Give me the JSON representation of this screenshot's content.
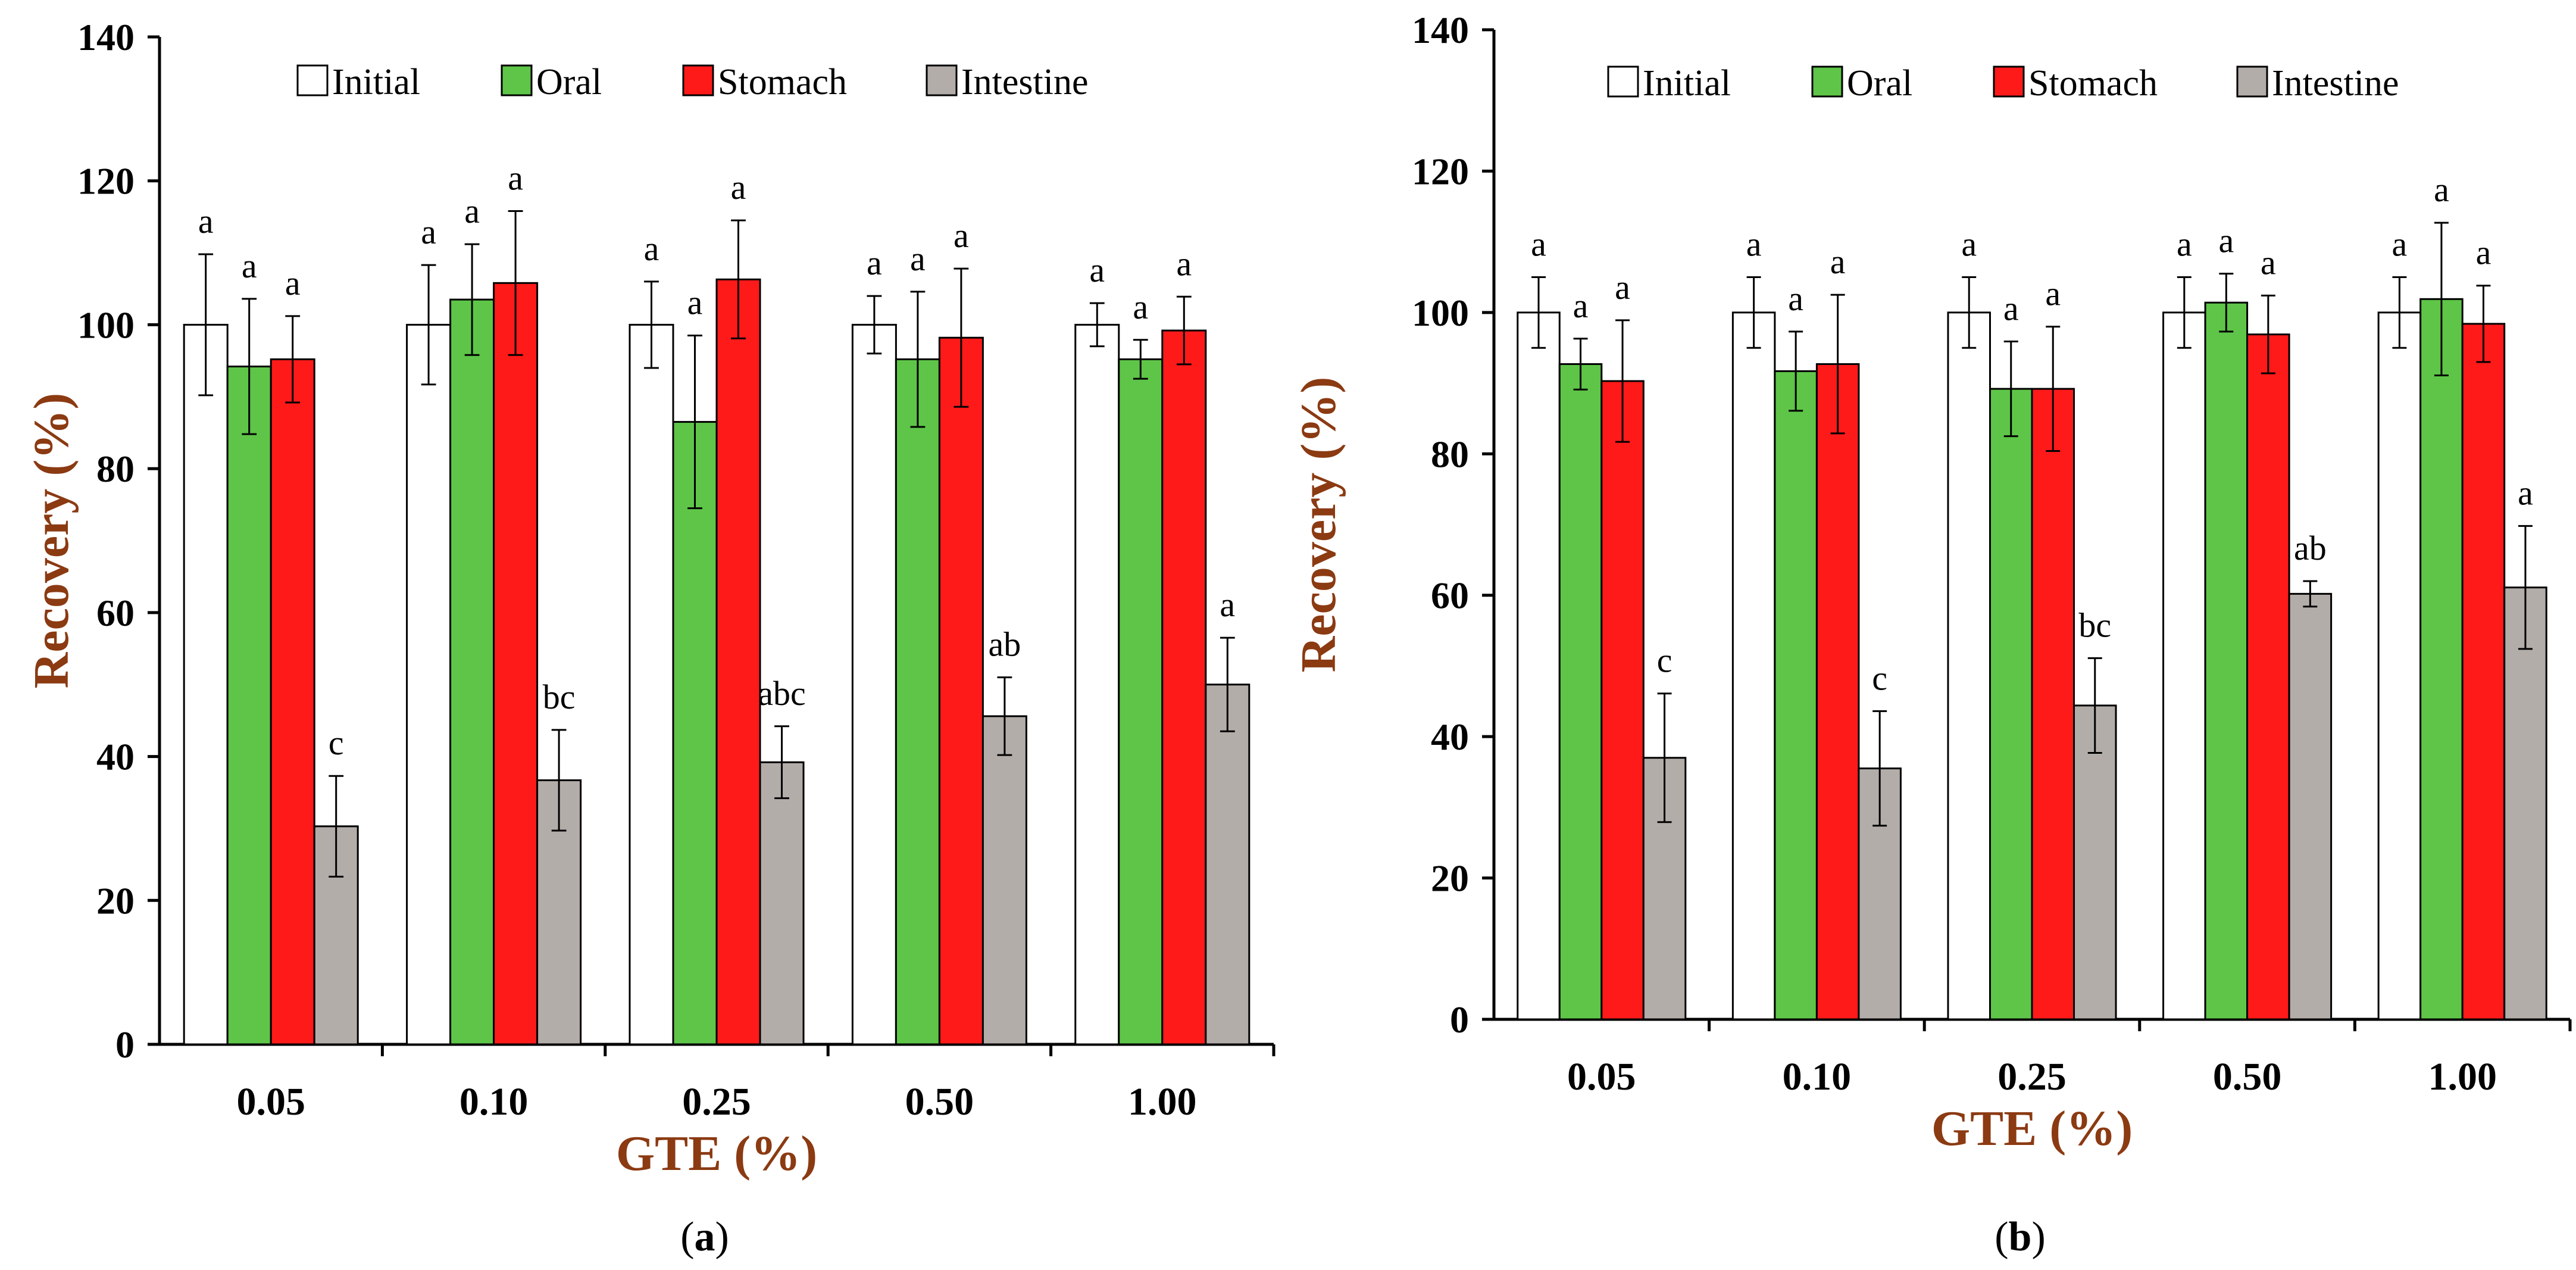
{
  "chart_data": [
    {
      "type": "bar",
      "panel_label": "a",
      "xlabel": "GTE (%)",
      "ylabel": "Recovery (%)",
      "ylim": [
        0,
        140
      ],
      "yticks": [
        0,
        20,
        40,
        60,
        80,
        100,
        120,
        140
      ],
      "categories": [
        "0.05",
        "0.10",
        "0.25",
        "0.50",
        "1.00"
      ],
      "legend_placement": "top",
      "series": [
        {
          "name": "Initial",
          "color": "#ffffff",
          "values": [
            100,
            100,
            100,
            100,
            100
          ],
          "errors": [
            9.8,
            8.3,
            6.0,
            4.0,
            3.0
          ],
          "letters": [
            "a",
            "a",
            "a",
            "a",
            "a"
          ]
        },
        {
          "name": "Oral",
          "color": "#5ec548",
          "values": [
            94.2,
            103.5,
            86.5,
            95.2,
            95.2
          ],
          "errors": [
            9.4,
            7.7,
            12.0,
            9.4,
            2.7
          ],
          "letters": [
            "a",
            "a",
            "a",
            "a",
            "a"
          ]
        },
        {
          "name": "Stomach",
          "color": "#ff1a1a",
          "values": [
            95.2,
            105.8,
            106.3,
            98.2,
            99.2
          ],
          "errors": [
            6.0,
            10.0,
            8.2,
            9.6,
            4.7
          ],
          "letters": [
            "a",
            "a",
            "a",
            "a",
            "a"
          ]
        },
        {
          "name": "Intestine",
          "color": "#b3adaa",
          "values": [
            30.3,
            36.7,
            39.2,
            45.6,
            50.0
          ],
          "errors": [
            7.0,
            7.0,
            5.0,
            5.4,
            6.5
          ],
          "letters": [
            "c",
            "bc",
            "abc",
            "ab",
            "a"
          ]
        }
      ]
    },
    {
      "type": "bar",
      "panel_label": "b",
      "xlabel": "GTE (%)",
      "ylabel": "Recovery (%)",
      "ylim": [
        0,
        140
      ],
      "yticks": [
        0,
        20,
        40,
        60,
        80,
        100,
        120,
        140
      ],
      "categories": [
        "0.05",
        "0.10",
        "0.25",
        "0.50",
        "1.00"
      ],
      "legend_placement": "top",
      "series": [
        {
          "name": "Initial",
          "color": "#ffffff",
          "values": [
            100,
            100,
            100,
            100,
            100
          ],
          "errors": [
            5.0,
            5.0,
            5.0,
            5.0,
            5.0
          ],
          "letters": [
            "a",
            "a",
            "a",
            "a",
            "a"
          ]
        },
        {
          "name": "Oral",
          "color": "#5ec548",
          "values": [
            92.7,
            91.7,
            89.2,
            101.4,
            101.9
          ],
          "errors": [
            3.6,
            5.6,
            6.7,
            4.1,
            10.8
          ],
          "letters": [
            "a",
            "a",
            "a",
            "a",
            "a"
          ]
        },
        {
          "name": "Stomach",
          "color": "#ff1a1a",
          "values": [
            90.3,
            92.7,
            89.2,
            96.9,
            98.4
          ],
          "errors": [
            8.6,
            9.8,
            8.8,
            5.5,
            5.4
          ],
          "letters": [
            "a",
            "a",
            "a",
            "a",
            "a"
          ]
        },
        {
          "name": "Intestine",
          "color": "#b3adaa",
          "values": [
            37.0,
            35.5,
            44.4,
            60.2,
            61.1
          ],
          "errors": [
            9.1,
            8.1,
            6.7,
            1.8,
            8.7
          ],
          "letters": [
            "c",
            "c",
            "bc",
            "ab",
            "a"
          ]
        }
      ]
    }
  ]
}
